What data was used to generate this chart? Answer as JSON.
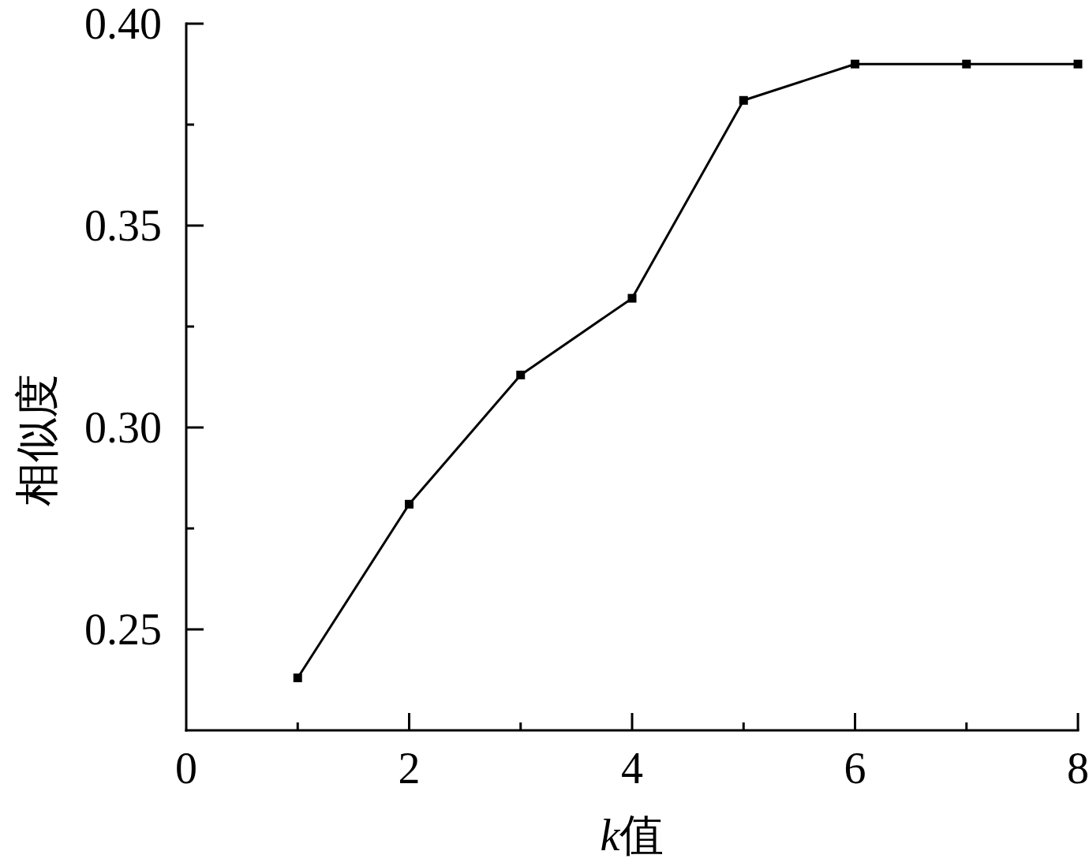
{
  "chart_data": {
    "type": "line",
    "xlabel": "k值",
    "ylabel": "相似度",
    "x": [
      1,
      2,
      3,
      4,
      5,
      6,
      7,
      8
    ],
    "series": [
      {
        "color": "#000000",
        "values": [
          0.238,
          0.281,
          0.313,
          0.332,
          0.381,
          0.39,
          0.39,
          0.39
        ]
      }
    ],
    "xlim": [
      0,
      8
    ],
    "ylim": [
      0.225,
      0.4
    ],
    "xticks": [
      0,
      {
        "value": 1,
        "label": null
      },
      2,
      {
        "value": 3,
        "label": null
      },
      4,
      {
        "value": 5,
        "label": null
      },
      6,
      {
        "value": 7,
        "label": null
      },
      8
    ],
    "yticks": [
      {
        "value": 0.25,
        "label": "0.25"
      },
      {
        "value": 0.275,
        "label": null
      },
      {
        "value": 0.3,
        "label": "0.30"
      },
      {
        "value": 0.325,
        "label": null
      },
      {
        "value": 0.35,
        "label": "0.35"
      },
      {
        "value": 0.375,
        "label": null
      },
      {
        "value": 0.4,
        "label": "0.40"
      }
    ],
    "marker": "square",
    "line_style": "solid"
  }
}
